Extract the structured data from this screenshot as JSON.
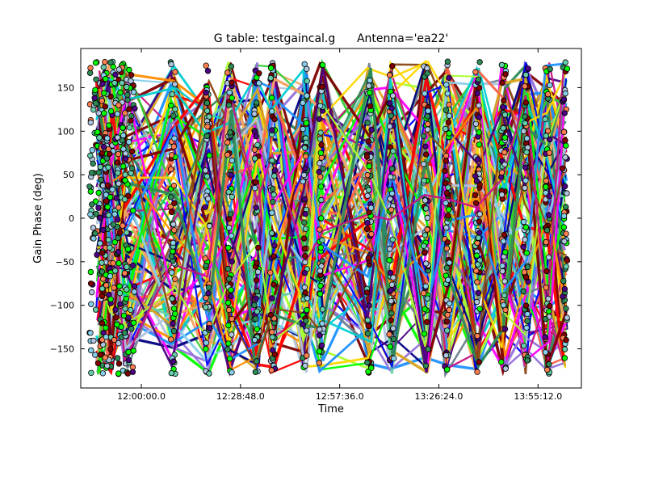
{
  "chart_data": {
    "type": "line",
    "title": "G table: testgaincal.g      Antenna='ea22'",
    "xlabel": "Time",
    "ylabel": "Gain Phase (deg)",
    "xlim": [
      "11:42:24",
      "14:07:48"
    ],
    "ylim": [
      -195,
      195
    ],
    "x_ticks": [
      {
        "t": "12:00:00",
        "label": "12:00:00.0"
      },
      {
        "t": "12:28:48",
        "label": "12:28:48.0"
      },
      {
        "t": "12:57:36",
        "label": "12:57:36.0"
      },
      {
        "t": "13:26:24",
        "label": "13:26:24.0"
      },
      {
        "t": "13:55:12",
        "label": "13:55:12.0"
      }
    ],
    "y_ticks": [
      {
        "v": -150,
        "label": "−150"
      },
      {
        "v": -100,
        "label": "−100"
      },
      {
        "v": -50,
        "label": "−50"
      },
      {
        "v": 0,
        "label": "0"
      },
      {
        "v": 50,
        "label": "50"
      },
      {
        "v": 100,
        "label": "100"
      },
      {
        "v": 150,
        "label": "150"
      }
    ],
    "scan_times": [
      "11:47:30",
      "11:51:00",
      "11:55:30",
      "12:09:10",
      "12:19:10",
      "12:25:40",
      "12:33:30",
      "12:38:10",
      "12:47:30",
      "12:52:20",
      "13:06:10",
      "13:12:40",
      "13:22:40",
      "13:28:50",
      "13:37:40",
      "13:45:10",
      "13:51:40",
      "13:58:00",
      "14:03:00"
    ],
    "grid": false,
    "legend": "none",
    "colors": [
      "#ff0000",
      "#0000ff",
      "#00ff00",
      "#7f0000",
      "#00ced1",
      "#ff00ff",
      "#ffd700",
      "#4b0082",
      "#ff8c00",
      "#2e8b57",
      "#1e90ff",
      "#adff2f",
      "#8b4513",
      "#c71585",
      "#66cdaa",
      "#9370db",
      "#f4a460",
      "#708090",
      "#32cd32",
      "#b0c4de",
      "#000080",
      "#ff6347",
      "#87ceeb",
      "#daa520"
    ],
    "marker_colors": [
      "#00ff00",
      "#7f0000",
      "#66cdaa",
      "#b0c4de",
      "#ff7f50",
      "#4b0082",
      "#87ceeb",
      "#2e8b57"
    ]
  }
}
